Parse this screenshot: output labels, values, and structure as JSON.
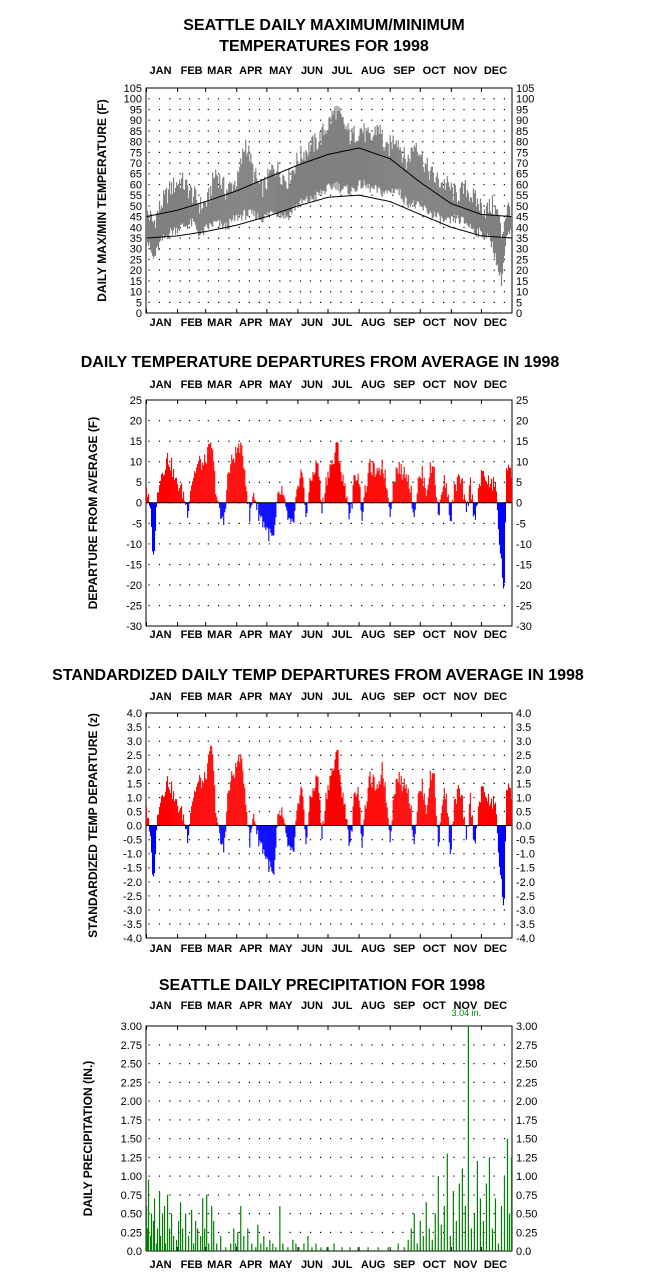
{
  "months": [
    "JAN",
    "FEB",
    "MAR",
    "APR",
    "MAY",
    "JUN",
    "JUL",
    "AUG",
    "SEP",
    "OCT",
    "NOV",
    "DEC"
  ],
  "chart_data": [
    {
      "id": "temps",
      "type": "line",
      "title_line1": "SEATTLE DAILY MAXIMUM/MINIMUM",
      "title_line2": "TEMPERATURES FOR 1998",
      "ylabel": "DAILY MAX/MIN TEMPERATURE (F)",
      "ylim": [
        0,
        105
      ],
      "yticks": [
        0,
        5,
        10,
        15,
        20,
        25,
        30,
        35,
        40,
        45,
        50,
        55,
        60,
        65,
        70,
        75,
        80,
        85,
        90,
        95,
        100,
        105
      ],
      "normal_max": {
        "days": [
          1,
          32,
          60,
          91,
          121,
          152,
          182,
          213,
          244,
          274,
          305,
          335,
          365
        ],
        "values": [
          45,
          48,
          52,
          57,
          63,
          69,
          74,
          77,
          72,
          61,
          51,
          46,
          45
        ]
      },
      "normal_min": {
        "days": [
          1,
          32,
          60,
          91,
          121,
          152,
          182,
          213,
          244,
          274,
          305,
          335,
          365
        ],
        "values": [
          35,
          36,
          38,
          41,
          45,
          50,
          54,
          55,
          52,
          46,
          40,
          36,
          35
        ]
      },
      "actual_max_anchor": {
        "days": [
          1,
          8,
          15,
          25,
          35,
          48,
          55,
          62,
          70,
          80,
          92,
          100,
          108,
          115,
          120,
          128,
          135,
          142,
          150,
          158,
          165,
          172,
          182,
          190,
          195,
          205,
          215,
          225,
          232,
          240,
          250,
          260,
          270,
          280,
          290,
          300,
          310,
          320,
          330,
          340,
          346,
          352,
          355,
          360,
          365
        ],
        "values": [
          48,
          42,
          50,
          58,
          62,
          55,
          50,
          52,
          66,
          57,
          62,
          80,
          65,
          58,
          60,
          69,
          65,
          62,
          70,
          75,
          78,
          80,
          88,
          95,
          90,
          82,
          86,
          80,
          88,
          75,
          83,
          70,
          80,
          68,
          62,
          60,
          55,
          58,
          52,
          48,
          50,
          46,
          36,
          48,
          50
        ]
      },
      "actual_min_anchor": {
        "days": [
          1,
          8,
          15,
          25,
          35,
          48,
          55,
          62,
          70,
          80,
          92,
          100,
          108,
          115,
          120,
          128,
          135,
          142,
          150,
          158,
          165,
          172,
          182,
          190,
          195,
          205,
          215,
          225,
          232,
          240,
          250,
          260,
          270,
          280,
          290,
          300,
          310,
          320,
          330,
          340,
          346,
          352,
          355,
          360,
          365
        ],
        "values": [
          35,
          25,
          33,
          38,
          40,
          42,
          36,
          40,
          42,
          40,
          45,
          46,
          46,
          44,
          45,
          48,
          46,
          45,
          50,
          52,
          53,
          55,
          58,
          60,
          58,
          57,
          60,
          58,
          57,
          56,
          58,
          52,
          50,
          48,
          45,
          42,
          44,
          42,
          38,
          36,
          32,
          20,
          15,
          35,
          38
        ]
      }
    },
    {
      "id": "departures",
      "type": "bar",
      "title": "DAILY TEMPERATURE DEPARTURES FROM AVERAGE IN 1998",
      "ylabel": "DEPARTURE FROM AVERAGE (F)",
      "ylim": [
        -30,
        25
      ],
      "yticks": [
        25,
        20,
        15,
        10,
        5,
        0,
        -5,
        -10,
        -15,
        -20,
        -25,
        -30
      ],
      "anchor_days": [
        1,
        5,
        8,
        10,
        12,
        14,
        18,
        22,
        26,
        30,
        34,
        38,
        42,
        46,
        50,
        54,
        58,
        62,
        66,
        70,
        74,
        78,
        82,
        86,
        90,
        94,
        98,
        100,
        104,
        108,
        112,
        116,
        120,
        124,
        128,
        132,
        136,
        140,
        144,
        148,
        152,
        156,
        160,
        164,
        168,
        172,
        176,
        180,
        184,
        188,
        190,
        192,
        196,
        200,
        204,
        208,
        212,
        216,
        220,
        224,
        228,
        232,
        236,
        240,
        244,
        248,
        252,
        256,
        260,
        264,
        268,
        272,
        276,
        280,
        284,
        288,
        292,
        296,
        300,
        304,
        308,
        312,
        316,
        320,
        324,
        328,
        332,
        336,
        340,
        344,
        348,
        350,
        352,
        354,
        356,
        358,
        360,
        362,
        365
      ],
      "anchor_values": [
        4,
        -3,
        -14,
        -6,
        2,
        6,
        8,
        11,
        9,
        5,
        4,
        2,
        -2,
        5,
        8,
        10,
        9,
        12,
        14,
        4,
        -3,
        -5,
        6,
        10,
        12,
        14,
        10,
        6,
        -4,
        3,
        -2,
        -4,
        -6,
        -8,
        -9,
        1,
        3,
        -2,
        -5,
        -6,
        5,
        8,
        -3,
        4,
        8,
        10,
        -2,
        5,
        9,
        10,
        13,
        14,
        6,
        3,
        -4,
        5,
        8,
        -3,
        4,
        9,
        8,
        6,
        10,
        5,
        -2,
        6,
        9,
        7,
        8,
        4,
        -3,
        5,
        7,
        3,
        8,
        9,
        -4,
        4,
        6,
        -5,
        3,
        6,
        4,
        -3,
        5,
        -4,
        3,
        7,
        6,
        4,
        5,
        2,
        -6,
        -12,
        -18,
        -21,
        8,
        10,
        8
      ]
    },
    {
      "id": "standardized",
      "type": "bar",
      "title": "STANDARDIZED DAILY TEMP DEPARTURES FROM AVERAGE IN 1998",
      "ylabel": "STANDARDIZED TEMP DEPARTURE (z)",
      "ylim": [
        -4.0,
        4.0
      ],
      "yticks": [
        "4.0",
        "3.5",
        "3.0",
        "2.5",
        "2.0",
        "1.5",
        "1.0",
        "0.5",
        "0.0",
        "-0.5",
        "-1.0",
        "-1.5",
        "-2.0",
        "-2.5",
        "-3.0",
        "-3.5",
        "-4.0"
      ],
      "anchor_days": [
        1,
        5,
        8,
        10,
        12,
        14,
        18,
        22,
        26,
        30,
        34,
        38,
        42,
        46,
        50,
        54,
        58,
        62,
        66,
        70,
        74,
        78,
        82,
        86,
        90,
        94,
        98,
        100,
        104,
        108,
        112,
        116,
        120,
        124,
        128,
        132,
        136,
        140,
        144,
        148,
        152,
        156,
        160,
        164,
        168,
        172,
        176,
        180,
        184,
        188,
        190,
        192,
        196,
        200,
        204,
        208,
        212,
        216,
        220,
        224,
        228,
        232,
        236,
        240,
        244,
        248,
        252,
        256,
        260,
        264,
        268,
        272,
        276,
        280,
        284,
        288,
        292,
        296,
        300,
        304,
        308,
        312,
        316,
        320,
        324,
        328,
        332,
        336,
        340,
        344,
        348,
        350,
        352,
        354,
        356,
        358,
        360,
        362,
        365
      ],
      "anchor_values": [
        0.7,
        -0.6,
        -2.0,
        -0.9,
        0.3,
        0.9,
        1.2,
        1.6,
        1.3,
        0.8,
        0.6,
        0.3,
        -0.4,
        0.8,
        1.3,
        1.6,
        1.5,
        2.0,
        2.9,
        0.7,
        -0.5,
        -0.9,
        1.0,
        1.7,
        2.0,
        2.5,
        1.7,
        1.0,
        -0.7,
        0.5,
        -0.4,
        -0.7,
        -1.1,
        -1.5,
        -1.9,
        0.2,
        0.5,
        -0.4,
        -0.9,
        -1.1,
        0.9,
        1.4,
        -0.6,
        0.8,
        1.4,
        1.8,
        -0.4,
        1.0,
        1.7,
        2.1,
        2.4,
        2.6,
        1.1,
        0.5,
        -0.8,
        0.9,
        1.5,
        -0.6,
        0.8,
        1.7,
        1.5,
        1.1,
        2.2,
        1.0,
        -0.4,
        1.2,
        1.8,
        1.4,
        1.6,
        0.8,
        -0.6,
        1.0,
        1.4,
        0.6,
        1.7,
        1.9,
        -0.9,
        0.9,
        1.3,
        -1.1,
        0.7,
        1.3,
        0.8,
        -0.6,
        1.0,
        -0.7,
        0.6,
        1.3,
        1.1,
        0.7,
        0.9,
        0.3,
        -0.9,
        -1.7,
        -2.5,
        -2.8,
        1.2,
        1.6,
        1.2
      ]
    },
    {
      "id": "precip",
      "type": "bar",
      "title": "SEATTLE DAILY PRECIPITATION FOR 1998",
      "ylabel": "DAILY PRECIPITATION (IN.)",
      "ylim": [
        0,
        3.0
      ],
      "yticks": [
        "3.00",
        "2.75",
        "2.50",
        "2.25",
        "2.00",
        "1.75",
        "1.50",
        "1.25",
        "1.00",
        "0.75",
        "0.50",
        "0.25",
        "0.0"
      ],
      "annotation": "3.04 in.",
      "bars": {
        "days": [
          1,
          2,
          3,
          5,
          6,
          8,
          9,
          11,
          12,
          14,
          15,
          17,
          19,
          20,
          22,
          24,
          26,
          28,
          31,
          33,
          35,
          37,
          40,
          43,
          46,
          48,
          50,
          52,
          55,
          57,
          59,
          61,
          63,
          66,
          68,
          71,
          75,
          80,
          85,
          88,
          90,
          92,
          95,
          98,
          102,
          106,
          110,
          112,
          115,
          118,
          121,
          124,
          127,
          130,
          134,
          137,
          142,
          147,
          150,
          153,
          158,
          162,
          166,
          170,
          175,
          181,
          188,
          196,
          204,
          212,
          222,
          232,
          242,
          252,
          258,
          262,
          265,
          268,
          271,
          274,
          277,
          280,
          283,
          286,
          289,
          292,
          295,
          298,
          301,
          304,
          307,
          310,
          313,
          316,
          319,
          322,
          325,
          328,
          331,
          334,
          337,
          340,
          343,
          346,
          349,
          352,
          355,
          358,
          361,
          363,
          365
        ],
        "values": [
          0.6,
          0.3,
          0.95,
          0.2,
          0.5,
          0.4,
          0.7,
          0.1,
          0.3,
          0.8,
          0.2,
          0.5,
          0.6,
          0.1,
          0.75,
          0.3,
          0.5,
          0.2,
          0.15,
          0.4,
          0.65,
          0.3,
          0.5,
          0.2,
          0.55,
          0.1,
          0.4,
          0.3,
          0.2,
          0.7,
          0.3,
          0.75,
          0.1,
          0.6,
          0.4,
          0.1,
          0.2,
          0.05,
          0.1,
          0.3,
          0.1,
          0.25,
          0.6,
          0.2,
          0.3,
          0.1,
          0.05,
          0.35,
          0.1,
          0.2,
          0.05,
          0.15,
          0.1,
          0.05,
          0.6,
          0.1,
          0.05,
          0.15,
          0.1,
          0.05,
          0.1,
          0.2,
          0.05,
          0.1,
          0.05,
          0.05,
          0.1,
          0.05,
          0.05,
          0.05,
          0.05,
          0.05,
          0.05,
          0.1,
          0.05,
          0.15,
          0.3,
          0.5,
          0.1,
          0.4,
          0.2,
          0.65,
          0.3,
          0.15,
          0.5,
          1.0,
          0.35,
          0.6,
          1.3,
          0.2,
          0.8,
          0.4,
          0.9,
          1.1,
          0.6,
          3.04,
          0.3,
          0.5,
          1.2,
          0.7,
          0.4,
          0.9,
          1.25,
          0.3,
          0.7,
          0.1,
          0.6,
          1.0,
          1.5,
          0.5,
          1.25
        ]
      }
    }
  ]
}
